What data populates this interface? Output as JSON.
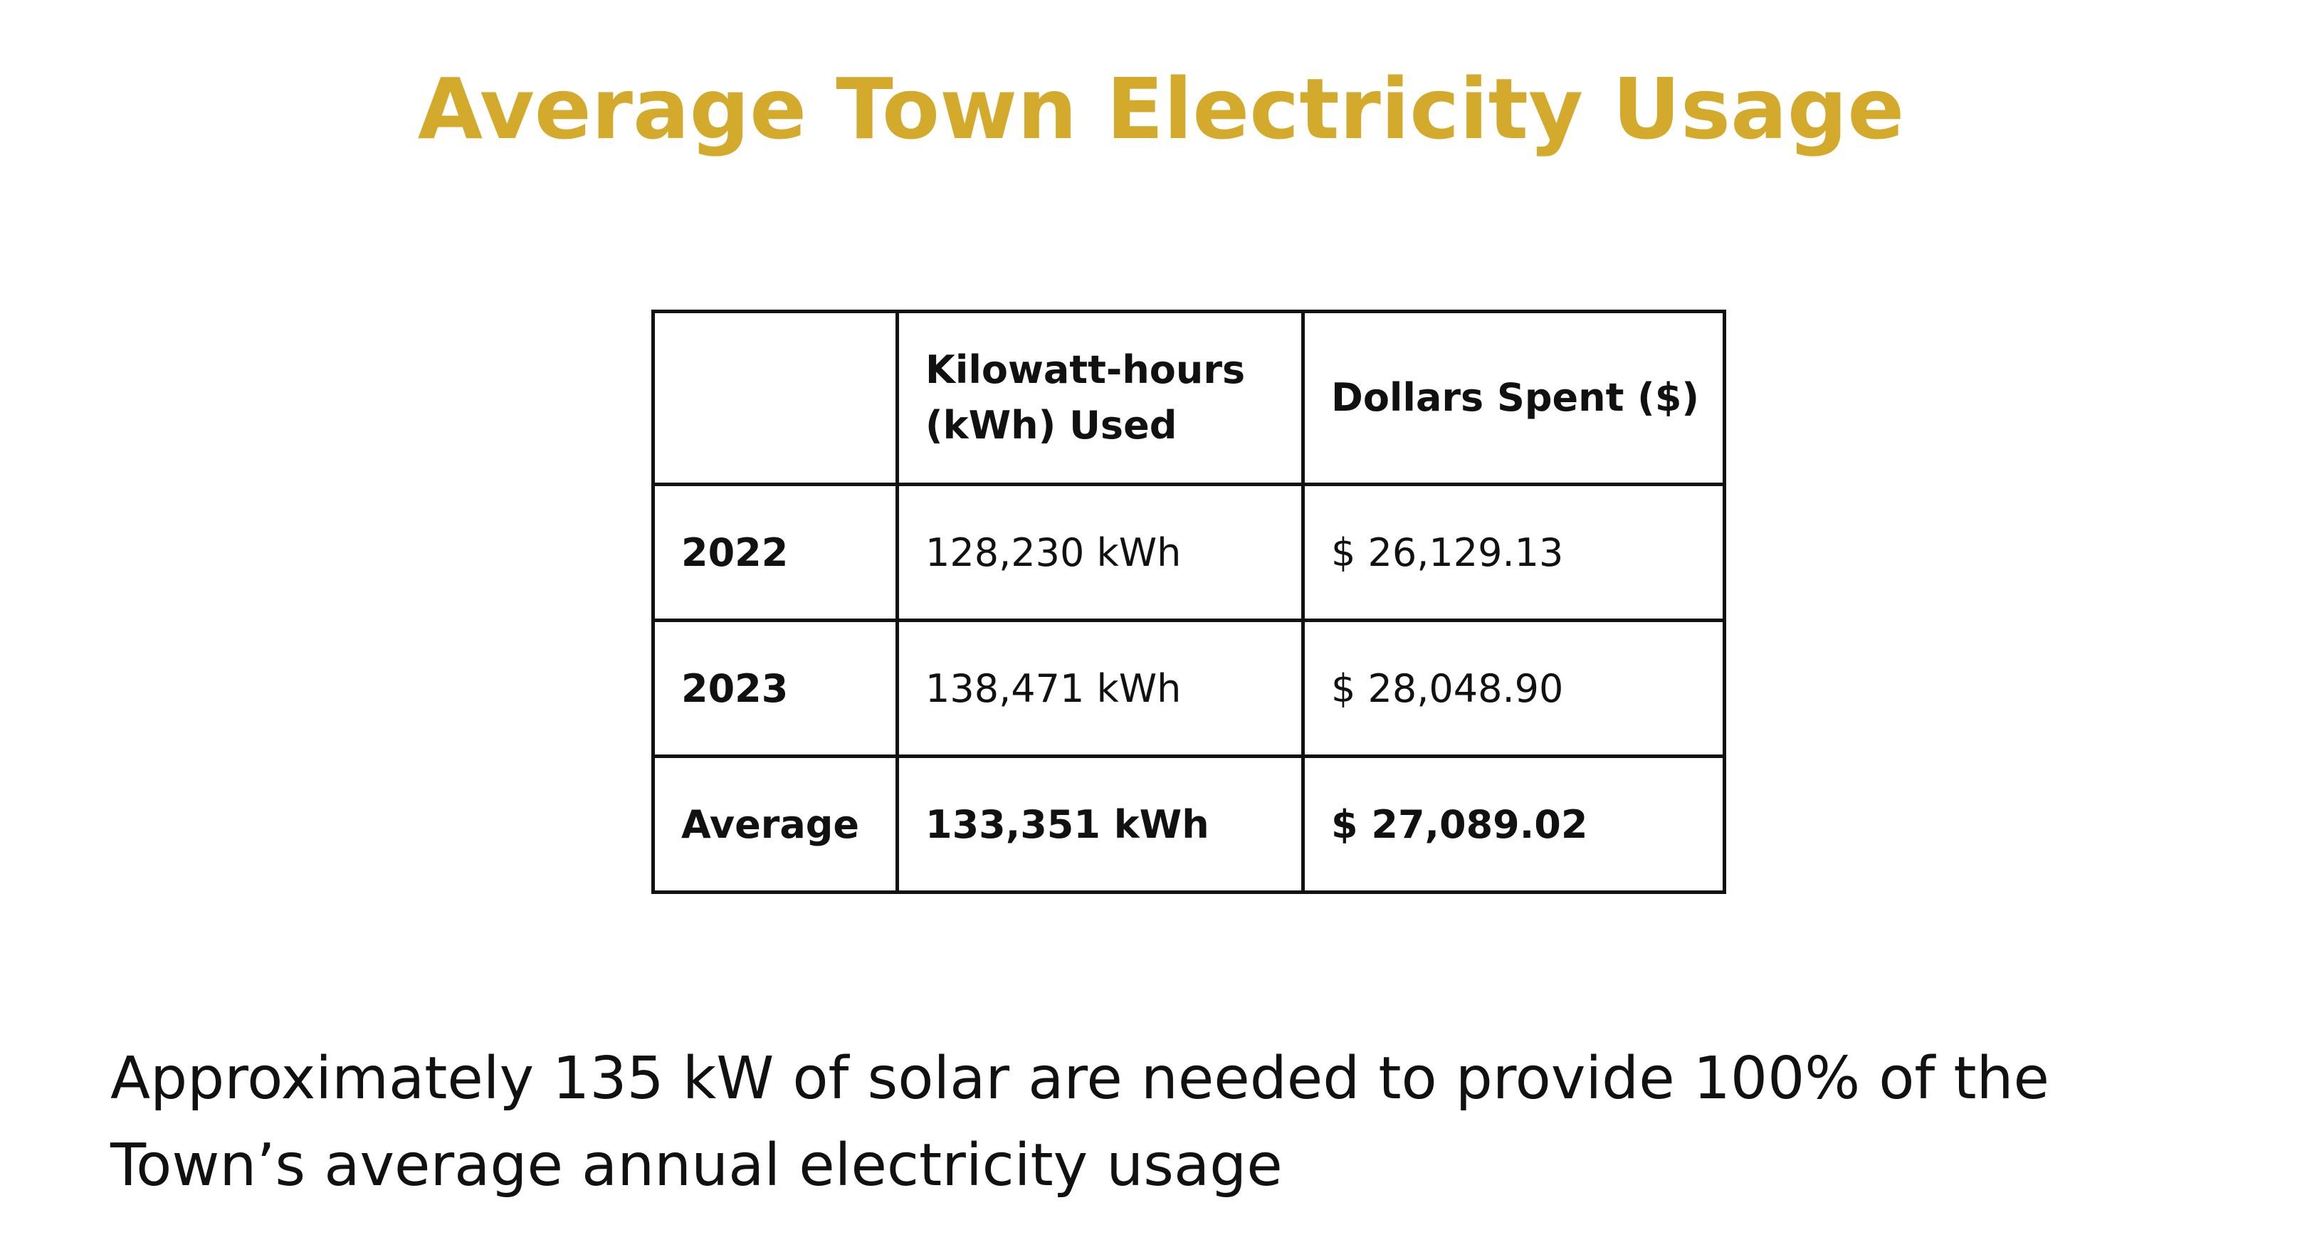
{
  "title": "Average Town Electricity Usage",
  "table": {
    "headers": [
      "",
      "Kilowatt-hours (kWh) Used",
      "Dollars Spent ($)"
    ],
    "rows": [
      {
        "label": "2022",
        "kwh": "128,230 kWh",
        "dollars": "$ 26,129.13"
      },
      {
        "label": "2023",
        "kwh": "138,471 kWh",
        "dollars": "$ 28,048.90"
      },
      {
        "label": "Average",
        "kwh": "133,351 kWh",
        "dollars": "$ 27,089.02"
      }
    ]
  },
  "summary": "Approximately 135 kW of solar are needed to provide 100% of the Town’s average annual electricity usage",
  "colors": {
    "title": "#d3aa2b",
    "text": "#111111",
    "border": "#111111",
    "background": "#ffffff"
  }
}
